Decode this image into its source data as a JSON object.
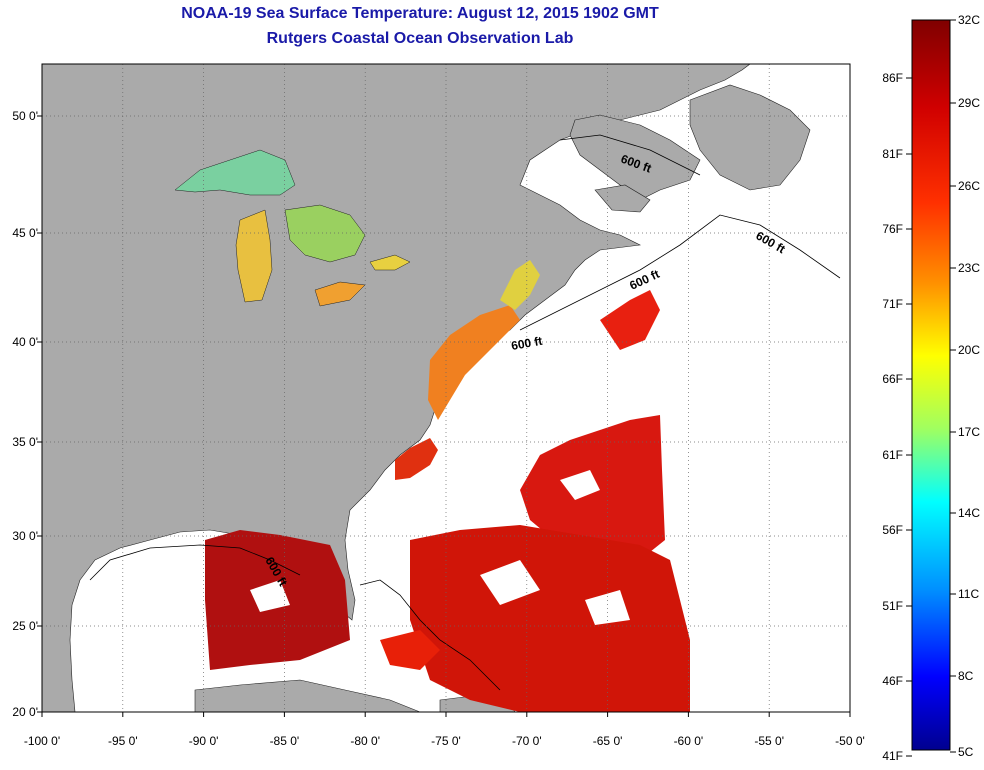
{
  "title": "NOAA-19 Sea Surface Temperature:  August 12, 2015 1902 GMT",
  "subtitle": "Rutgers Coastal Ocean Observation Lab",
  "lon_ticks": [
    "-100 0'",
    "-95 0'",
    "-90 0'",
    "-85 0'",
    "-80 0'",
    "-75 0'",
    "-70 0'",
    "-65 0'",
    "-60 0'",
    "-55 0'",
    "-50 0'"
  ],
  "lat_ticks": [
    "20 0'",
    "25 0'",
    "30 0'",
    "35 0'",
    "40 0'",
    "45 0'",
    "50 0'"
  ],
  "depth_labels": [
    "600 ft",
    "600 ft",
    "600 ft",
    "600 ft",
    "600 ft"
  ],
  "colorbar": {
    "celsius": [
      "32C",
      "29C",
      "26C",
      "23C",
      "20C",
      "17C",
      "14C",
      "11C",
      "8C",
      "5C"
    ],
    "fahrenheit": [
      "86F",
      "81F",
      "76F",
      "71F",
      "66F",
      "61F",
      "56F",
      "51F",
      "46F",
      "41F"
    ],
    "colors": [
      "#800000",
      "#ff0000",
      "#ff8000",
      "#ffff00",
      "#80ff80",
      "#00ffff",
      "#0080ff",
      "#0000ff",
      "#00008f"
    ]
  },
  "colors": {
    "title": "#1a1aa8",
    "land": "#aaaaaa",
    "ocean": "#ffffff"
  }
}
